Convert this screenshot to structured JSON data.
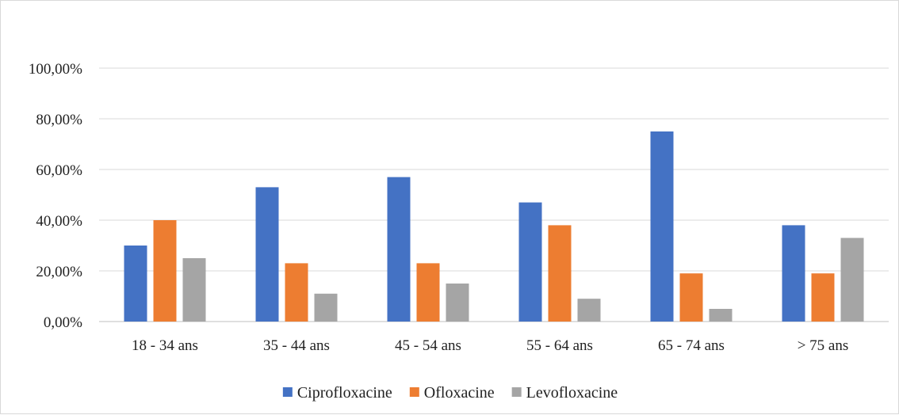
{
  "chart_data": {
    "type": "bar",
    "title": "",
    "xlabel": "",
    "ylabel": "",
    "categories": [
      "18 - 34 ans",
      "35 - 44 ans",
      "45 - 54 ans",
      "55 - 64 ans",
      "65 - 74 ans",
      "> 75 ans"
    ],
    "series": [
      {
        "name": "Ciprofloxacine",
        "color": "#4472c4",
        "values": [
          30,
          53,
          57,
          47,
          75,
          38
        ]
      },
      {
        "name": "Ofloxacine",
        "color": "#ed7d31",
        "values": [
          40,
          23,
          23,
          38,
          19,
          19
        ]
      },
      {
        "name": "Levofloxacine",
        "color": "#a5a5a5",
        "values": [
          25,
          11,
          15,
          9,
          5,
          33
        ]
      }
    ],
    "ylim": [
      0,
      100
    ],
    "yticks": [
      0,
      20,
      40,
      60,
      80,
      100
    ],
    "ytick_labels": [
      "0,00%",
      "20,00%",
      "40,00%",
      "60,00%",
      "80,00%",
      "100,00%"
    ],
    "grid": true,
    "legend_position": "bottom"
  }
}
